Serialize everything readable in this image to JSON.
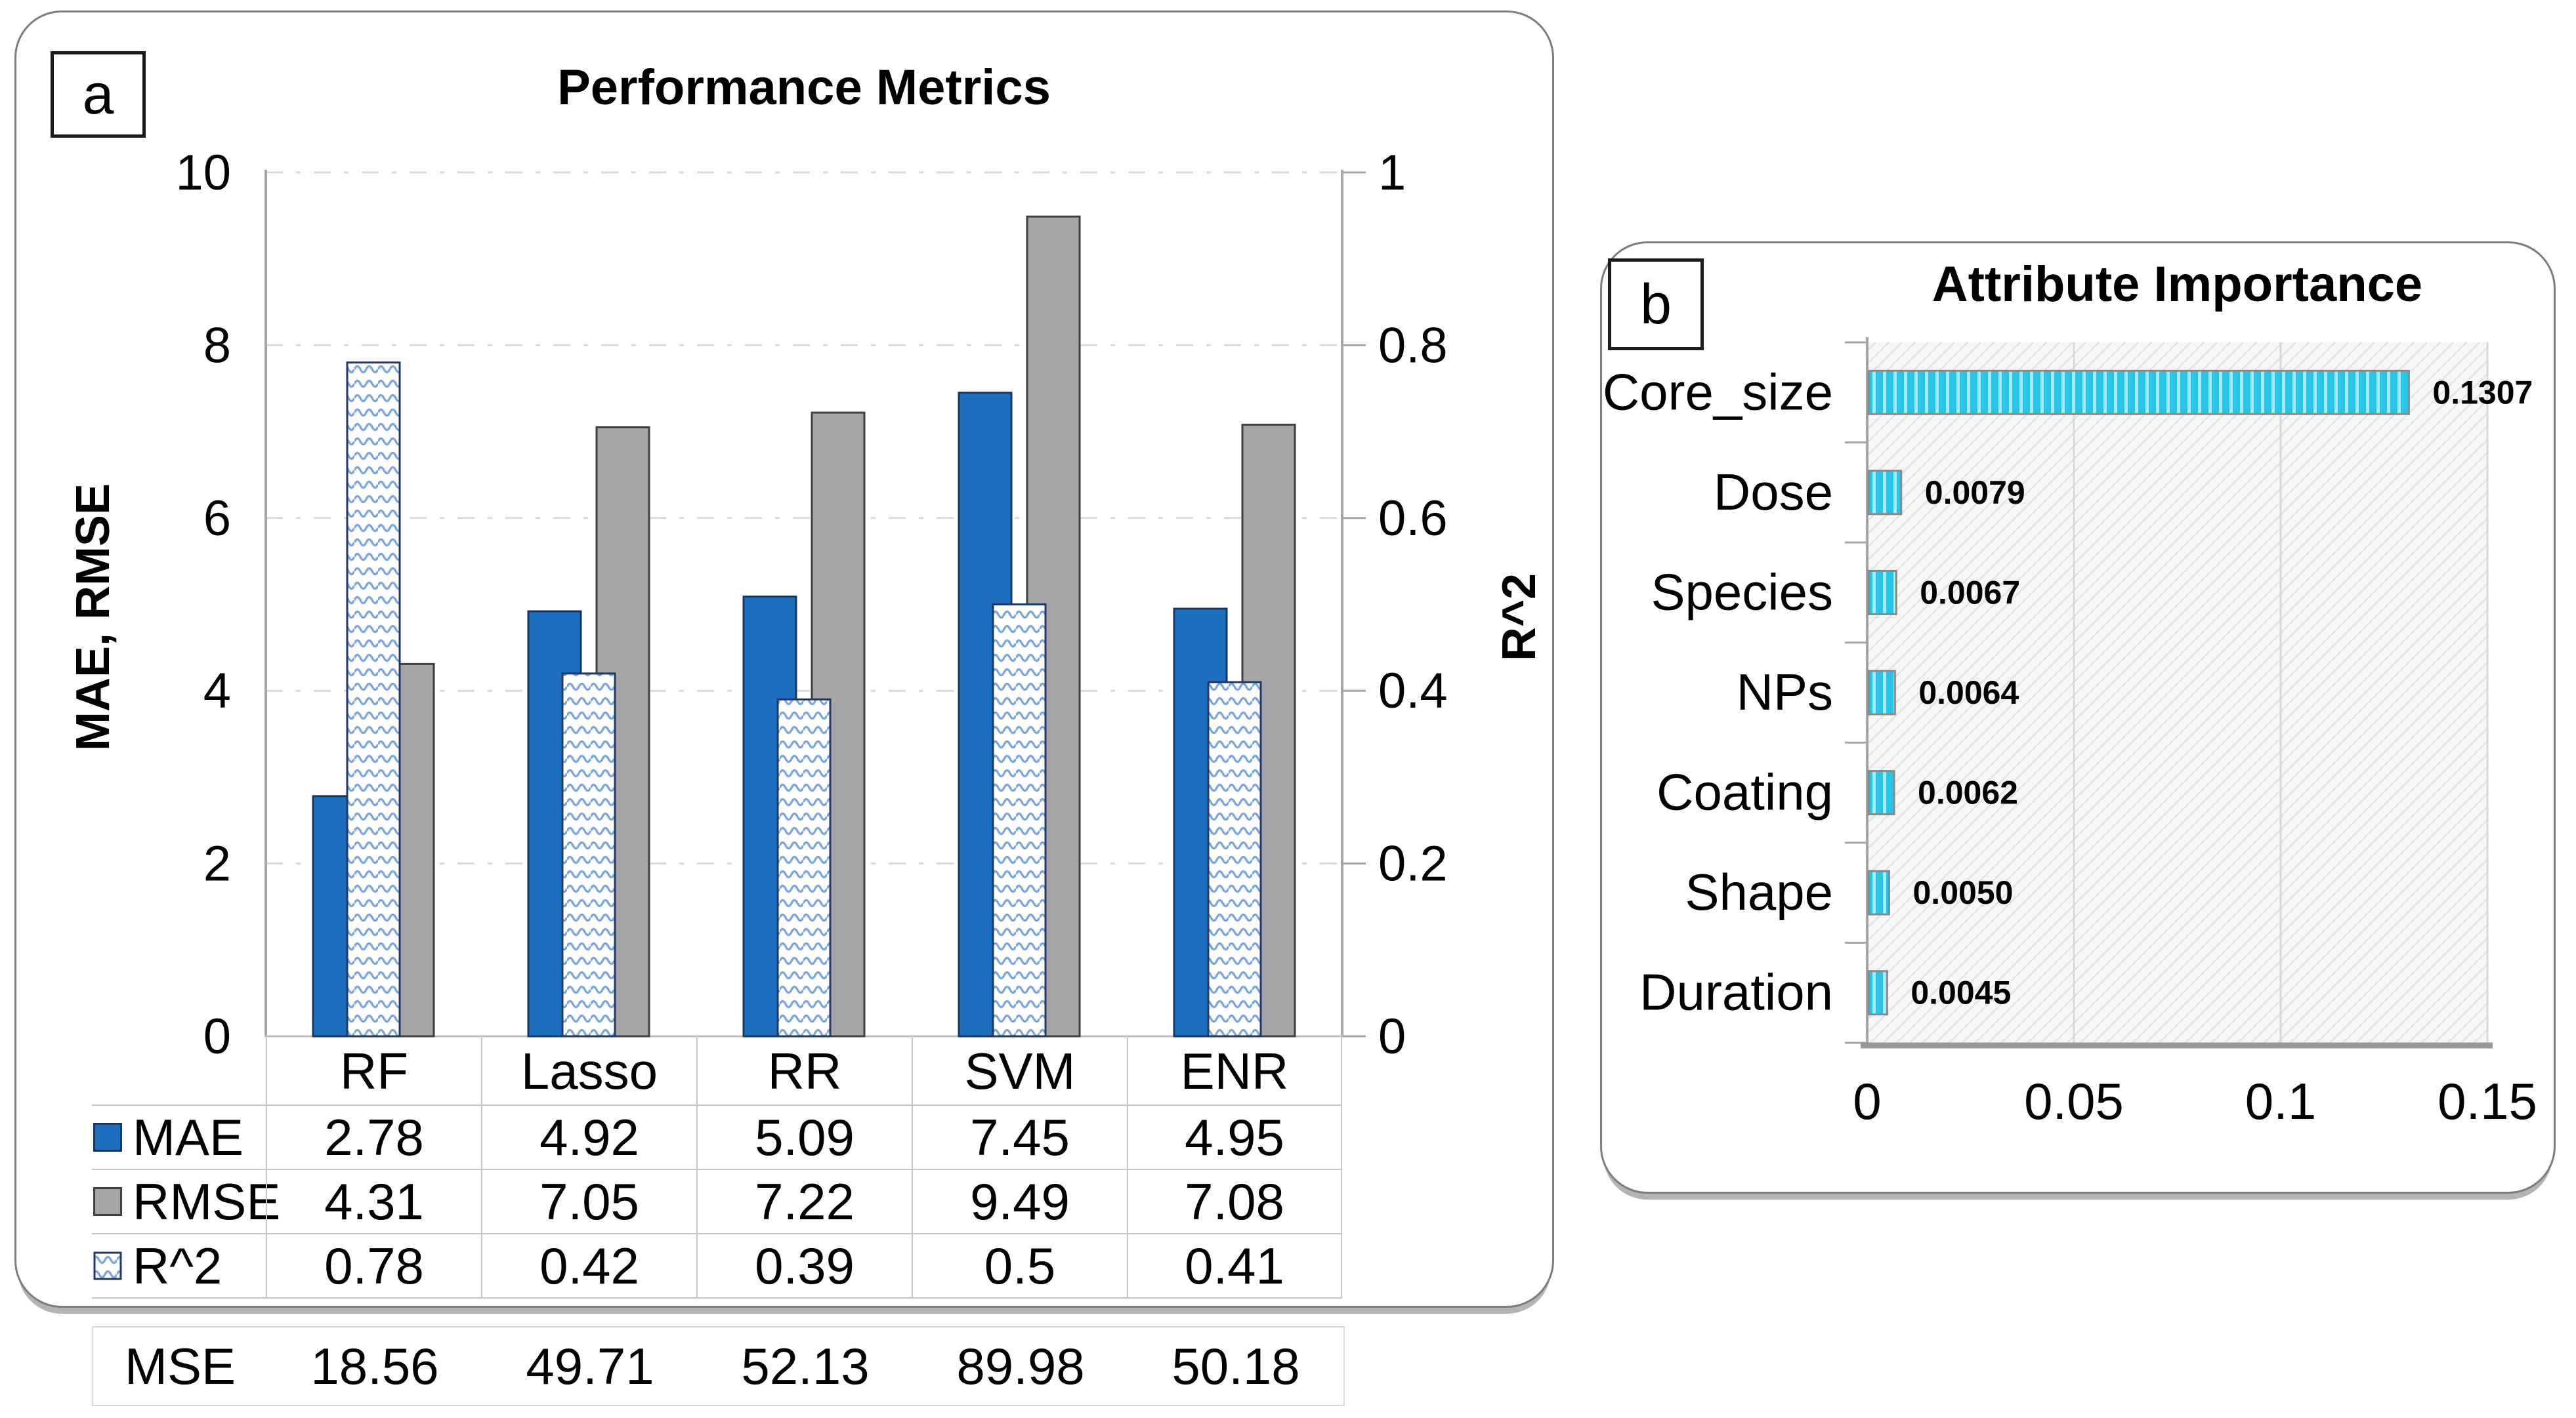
{
  "chart_data": [
    {
      "id": "performance-metrics",
      "panel_label": "a",
      "type": "bar",
      "title": "Performance Metrics",
      "categories": [
        "RF",
        "Lasso",
        "RR",
        "SVM",
        "ENR"
      ],
      "series": [
        {
          "name": "MAE",
          "axis": "left",
          "style": "solid-blue",
          "values": [
            2.78,
            4.92,
            5.09,
            7.45,
            4.95
          ]
        },
        {
          "name": "RMSE",
          "axis": "left",
          "style": "solid-gray",
          "values": [
            4.31,
            7.05,
            7.22,
            9.49,
            7.08
          ]
        },
        {
          "name": "R^2",
          "axis": "right",
          "style": "wave-pattern",
          "values": [
            0.78,
            0.42,
            0.39,
            0.5,
            0.41
          ]
        }
      ],
      "y_left": {
        "label": "MAE, RMSE",
        "min": 0,
        "max": 10,
        "ticks": [
          0,
          2,
          4,
          6,
          8,
          10
        ]
      },
      "y_right": {
        "label": "R^2",
        "min": 0,
        "max": 1,
        "ticks": [
          0,
          0.2,
          0.4,
          0.6,
          0.8,
          1
        ]
      },
      "grid": "horizontal dash-dot",
      "legend_position": "data-table-left",
      "data_table_rows": [
        "MAE",
        "RMSE",
        "R^2"
      ],
      "extra_table": {
        "label": "MSE",
        "values": [
          "18.56",
          "49.71",
          "52.13",
          "89.98",
          "50.18"
        ]
      }
    },
    {
      "id": "attribute-importance",
      "panel_label": "b",
      "type": "bar-horizontal",
      "title": "Attribute Importance",
      "categories": [
        "Core_size",
        "Dose",
        "Species",
        "NPs",
        "Coating",
        "Shape",
        "Duration"
      ],
      "values": [
        0.1307,
        0.0079,
        0.0067,
        0.0064,
        0.0062,
        0.005,
        0.0045
      ],
      "value_labels": [
        "0.1307",
        "0.0079",
        "0.0067",
        "0.0064",
        "0.0062",
        "0.0050",
        "0.0045"
      ],
      "xlim": [
        0,
        0.15
      ],
      "x_ticks": [
        0,
        0.05,
        0.1,
        0.15
      ],
      "x_tick_labels": [
        "0",
        "0.05",
        "0.1",
        "0.15"
      ],
      "grid": "vertical",
      "plot_background": "diagonal-hatch"
    }
  ],
  "colors": {
    "mae_bar": "#1e6fc0",
    "mae_border": "#17375e",
    "rmse_bar": "#a6a6a6",
    "rmse_border": "#404040",
    "r2_wave_line": "#7ba7dc",
    "r2_border": "#1f3864",
    "importance_bar": "#2cc3e4",
    "importance_bar_stripe": "#a8ebf7",
    "importance_bar_border": "#8a8a8a",
    "gridline": "#d9d9d9",
    "axis_line": "#a6a6a6",
    "bottom_axis_line": "#bfbfbf",
    "hatch_bg": "#f6f6f6",
    "hatch_line": "#e3e3e3",
    "table_border": "#c6c6c6",
    "panel_border": "#7d7d7d",
    "text": "#000000"
  }
}
